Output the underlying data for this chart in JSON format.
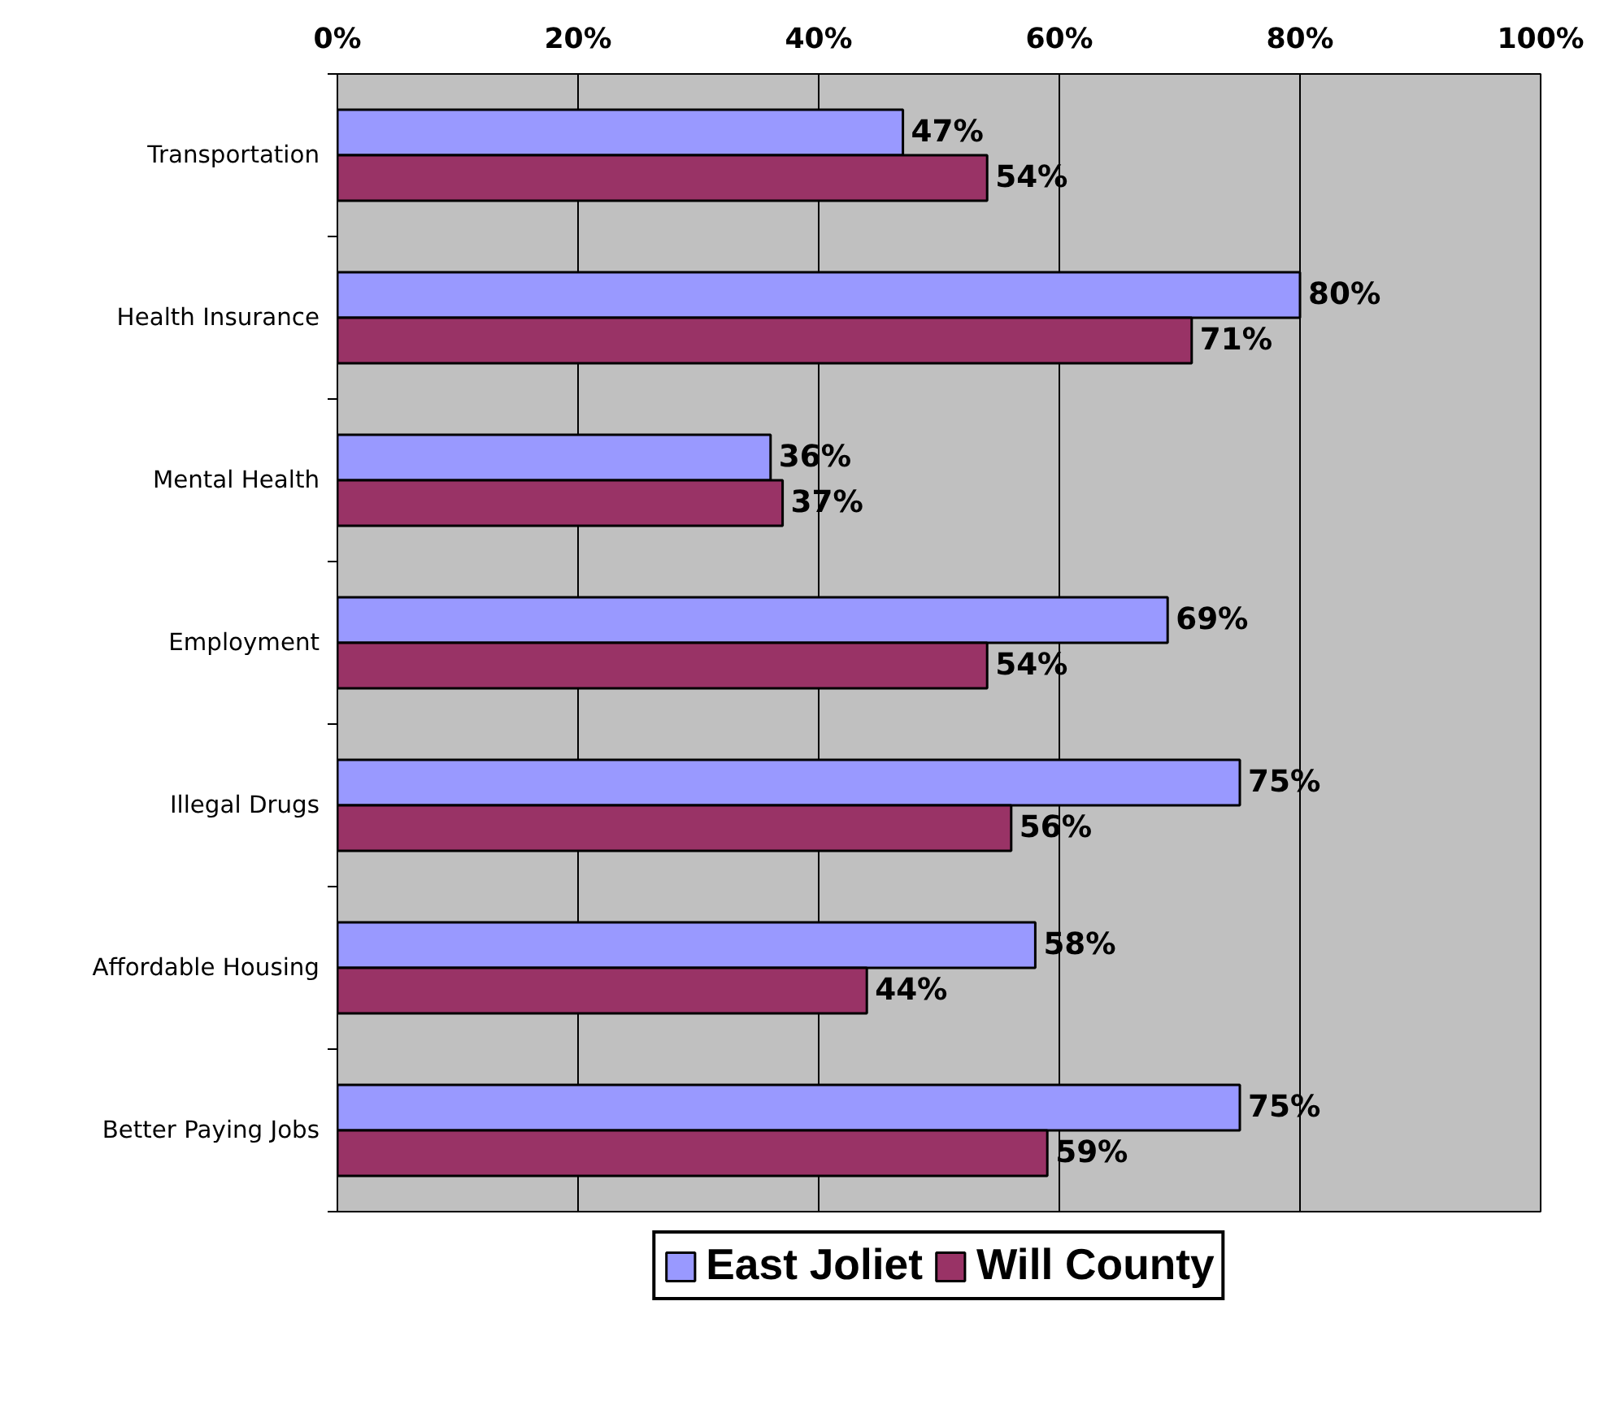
{
  "chart_data": {
    "type": "bar",
    "orientation": "horizontal",
    "categories": [
      "Transportation",
      "Health Insurance",
      "Mental Health",
      "Employment",
      "Illegal Drugs",
      "Affordable Housing",
      "Better Paying Jobs"
    ],
    "series": [
      {
        "name": "East Joliet",
        "color": "#9999ff",
        "values": [
          47,
          80,
          36,
          69,
          75,
          58,
          75
        ],
        "value_labels": [
          "47%",
          "80%",
          "36%",
          "69%",
          "75%",
          "58%",
          "75%"
        ]
      },
      {
        "name": "Will County",
        "color": "#993366",
        "values": [
          54,
          71,
          37,
          54,
          56,
          44,
          59
        ],
        "value_labels": [
          "54%",
          "71%",
          "37%",
          "54%",
          "56%",
          "44%",
          "59%"
        ]
      }
    ],
    "xlim": [
      0,
      100
    ],
    "xticks": [
      {
        "value": 0,
        "label": "0%"
      },
      {
        "value": 20,
        "label": "20%"
      },
      {
        "value": 40,
        "label": "40%"
      },
      {
        "value": 60,
        "label": "60%"
      },
      {
        "value": 80,
        "label": "80%"
      },
      {
        "value": 100,
        "label": "100%"
      }
    ],
    "grid": "x",
    "legend": "bottom",
    "data_labels": true
  }
}
